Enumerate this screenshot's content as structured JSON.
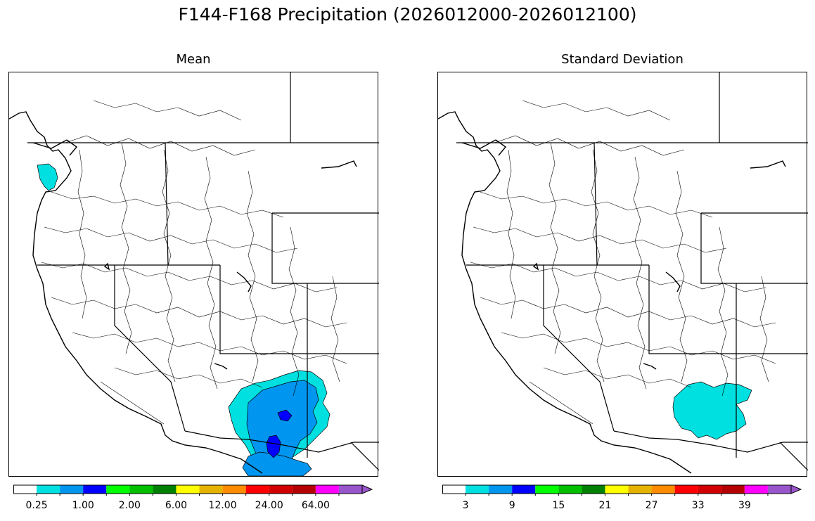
{
  "title": "F144-F168 Precipitation (2026012000-2026012100)",
  "panels": [
    {
      "id": "mean",
      "title": "Mean",
      "colorbar": {
        "colors": [
          "#ffffff",
          "#00e0e0",
          "#0096f0",
          "#0000ff",
          "#00ff00",
          "#00c000",
          "#008000",
          "#ffff00",
          "#e6b400",
          "#ff8c00",
          "#ff0000",
          "#d20000",
          "#b40000",
          "#ff00ff",
          "#9955cc"
        ],
        "extend": "max",
        "tick_labels": [
          "0.25",
          "1.00",
          "2.00",
          "6.00",
          "12.00",
          "24.00",
          "64.00"
        ]
      },
      "shaded_regions": [
        {
          "level": "0.25-0.50",
          "color": "#00e0e0",
          "area": "northwest Washington coast"
        },
        {
          "level": "0.25-0.50",
          "color": "#00e0e0",
          "area": "central Arizona rim"
        },
        {
          "level": "0.50-1.00",
          "color": "#0096f0",
          "area": "central and southern Arizona"
        },
        {
          "level": "1.00-1.50",
          "color": "#0000ff",
          "area": "south-central Arizona"
        }
      ]
    },
    {
      "id": "stddev",
      "title": "Standard Deviation",
      "colorbar": {
        "colors": [
          "#ffffff",
          "#00e0e0",
          "#0096f0",
          "#0000ff",
          "#00ff00",
          "#00c000",
          "#008000",
          "#ffff00",
          "#e6b400",
          "#ff8c00",
          "#ff0000",
          "#d20000",
          "#b40000",
          "#ff00ff",
          "#9955cc"
        ],
        "extend": "max",
        "tick_labels": [
          "3",
          "9",
          "15",
          "21",
          "27",
          "33",
          "39"
        ]
      },
      "shaded_regions": [
        {
          "level": "3-6",
          "color": "#00e0e0",
          "area": "central Arizona"
        }
      ]
    }
  ]
}
